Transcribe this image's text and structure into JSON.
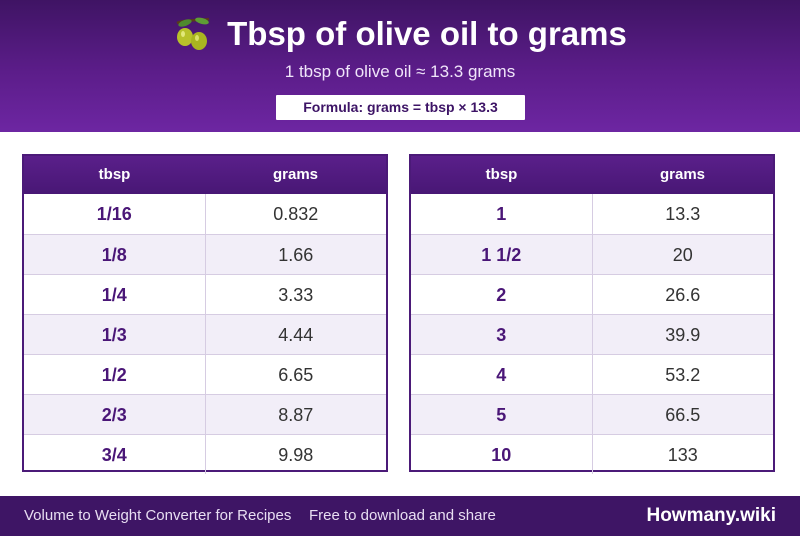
{
  "header": {
    "title": "Tbsp of olive oil to grams",
    "subtitle": "1 tbsp of olive oil ≈ 13.3 grams",
    "formula": "Formula: grams = tbsp × 13.3",
    "icon": "olive-icon"
  },
  "tables": [
    {
      "columns": [
        "tbsp",
        "grams"
      ],
      "rows": [
        {
          "tbsp": "1/16",
          "grams": "0.832"
        },
        {
          "tbsp": "1/8",
          "grams": "1.66"
        },
        {
          "tbsp": "1/4",
          "grams": "3.33"
        },
        {
          "tbsp": "1/3",
          "grams": "4.44"
        },
        {
          "tbsp": "1/2",
          "grams": "6.65"
        },
        {
          "tbsp": "2/3",
          "grams": "8.87"
        },
        {
          "tbsp": "3/4",
          "grams": "9.98"
        }
      ]
    },
    {
      "columns": [
        "tbsp",
        "grams"
      ],
      "rows": [
        {
          "tbsp": "1",
          "grams": "13.3"
        },
        {
          "tbsp": "1 1/2",
          "grams": "20"
        },
        {
          "tbsp": "2",
          "grams": "26.6"
        },
        {
          "tbsp": "3",
          "grams": "39.9"
        },
        {
          "tbsp": "4",
          "grams": "53.2"
        },
        {
          "tbsp": "5",
          "grams": "66.5"
        },
        {
          "tbsp": "10",
          "grams": "133"
        }
      ]
    }
  ],
  "footer": {
    "left": "Volume to Weight Converter for Recipes",
    "middle": "Free to download and share",
    "brand": "Howmany.wiki"
  },
  "colors": {
    "header_dark": "#3f1464",
    "header_light": "#6d26a2",
    "accent_text": "#4a1677",
    "row_alt": "#f2eef8",
    "footer": "#3e1565"
  }
}
